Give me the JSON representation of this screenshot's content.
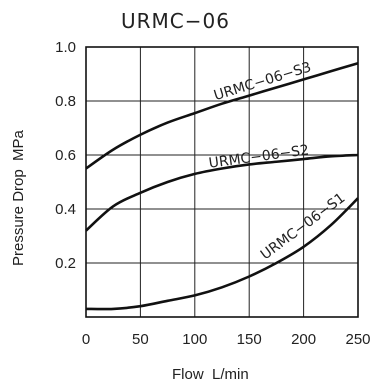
{
  "chart_data": {
    "type": "line",
    "title": "URMC−06",
    "xlabel": "Flow  L/min",
    "ylabel": "Pressure Drop  MPa",
    "xlim": [
      0,
      250
    ],
    "ylim": [
      0,
      1.0
    ],
    "x_ticks": [
      0,
      50,
      100,
      150,
      200,
      250
    ],
    "x_tick_labels": [
      "0",
      "50",
      "100",
      "150",
      "200",
      "250"
    ],
    "y_ticks": [
      0.2,
      0.4,
      0.6,
      0.8,
      1.0
    ],
    "y_tick_labels": [
      "0.2",
      "0.4",
      "0.6",
      "0.8",
      "1.0"
    ],
    "grid": true,
    "series": [
      {
        "name": "URMC−06−S3",
        "x": [
          0,
          25,
          50,
          75,
          100,
          125,
          150,
          175,
          200,
          225,
          250
        ],
        "y": [
          0.55,
          0.62,
          0.675,
          0.72,
          0.755,
          0.79,
          0.82,
          0.85,
          0.88,
          0.91,
          0.94
        ]
      },
      {
        "name": "URMC−06−S2",
        "x": [
          0,
          25,
          50,
          75,
          100,
          125,
          150,
          175,
          200,
          225,
          250
        ],
        "y": [
          0.32,
          0.41,
          0.46,
          0.5,
          0.53,
          0.55,
          0.565,
          0.575,
          0.585,
          0.595,
          0.6
        ]
      },
      {
        "name": "URMC−06−S1",
        "x": [
          0,
          25,
          50,
          75,
          100,
          125,
          150,
          175,
          200,
          225,
          250
        ],
        "y": [
          0.03,
          0.03,
          0.04,
          0.06,
          0.08,
          0.11,
          0.15,
          0.2,
          0.26,
          0.34,
          0.44
        ]
      }
    ]
  }
}
